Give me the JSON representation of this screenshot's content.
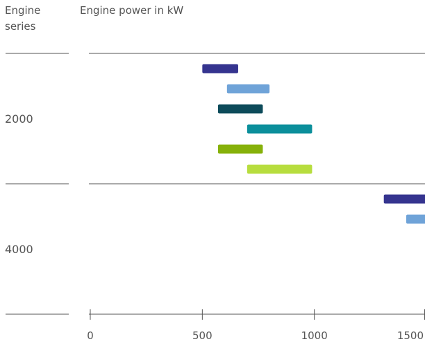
{
  "headers": {
    "series_line1": "Engine",
    "series_line2": "series",
    "power": "Engine power in kW"
  },
  "chart_data": {
    "type": "bar",
    "orientation": "horizontal-range",
    "xlabel": "Engine power in kW",
    "ylabel": "Engine series",
    "xlim": [
      -30,
      1500
    ],
    "x_ticks": [
      0,
      500,
      1000,
      1500
    ],
    "groups": [
      {
        "name": "2000",
        "bars": [
          {
            "start": 500,
            "end": 660,
            "color": "#35348f"
          },
          {
            "start": 610,
            "end": 800,
            "color": "#6fa3d8"
          },
          {
            "start": 570,
            "end": 770,
            "color": "#0d4b5a"
          },
          {
            "start": 700,
            "end": 990,
            "color": "#0b8f9b"
          },
          {
            "start": 570,
            "end": 770,
            "color": "#86b10a"
          },
          {
            "start": 700,
            "end": 990,
            "color": "#b7dd3e"
          }
        ]
      },
      {
        "name": "4000",
        "bars": [
          {
            "start": 1310,
            "end": 1500,
            "color": "#35348f"
          },
          {
            "start": 1410,
            "end": 1500,
            "color": "#6fa3d8"
          }
        ]
      }
    ]
  }
}
